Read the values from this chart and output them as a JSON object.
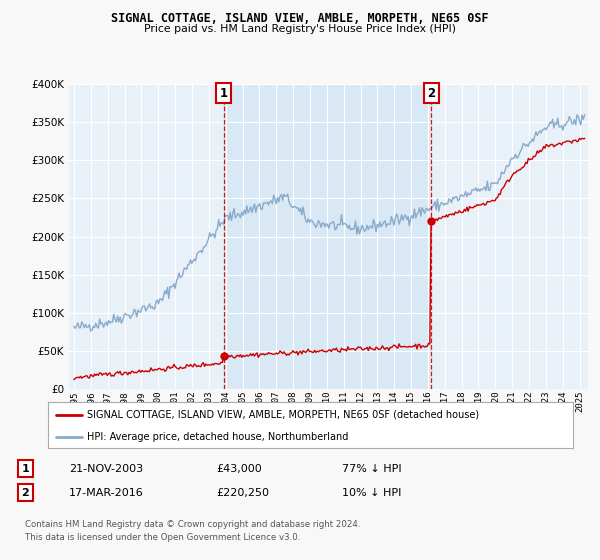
{
  "title": "SIGNAL COTTAGE, ISLAND VIEW, AMBLE, MORPETH, NE65 0SF",
  "subtitle": "Price paid vs. HM Land Registry's House Price Index (HPI)",
  "legend_line1": "SIGNAL COTTAGE, ISLAND VIEW, AMBLE, MORPETH, NE65 0SF (detached house)",
  "legend_line2": "HPI: Average price, detached house, Northumberland",
  "sale1_label": "1",
  "sale1_date": "21-NOV-2003",
  "sale1_price": 43000,
  "sale1_x": 2003.89,
  "sale2_label": "2",
  "sale2_date": "17-MAR-2016",
  "sale2_price": 220250,
  "sale2_x": 2016.21,
  "footnote1": "Contains HM Land Registry data © Crown copyright and database right 2024.",
  "footnote2": "This data is licensed under the Open Government Licence v3.0.",
  "ylim": [
    0,
    400000
  ],
  "xlim_start": 1994.7,
  "xlim_end": 2025.5,
  "red_color": "#cc0000",
  "blue_color": "#88aacc",
  "shade_color": "#d8e8f5",
  "background_plot": "#e8f0f8",
  "background_fig": "#f8f8f8",
  "grid_color": "#ffffff",
  "marker_box_color": "#cc0000"
}
